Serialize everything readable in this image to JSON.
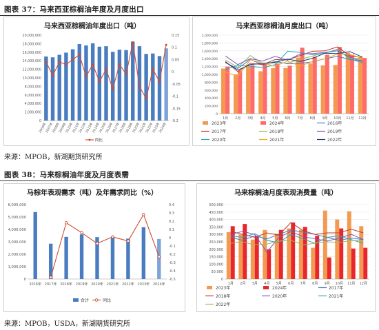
{
  "figures": [
    {
      "title": "图表 37：马来西亚棕榈油年度及月度出口",
      "source": "来源：MPOB，新湖期货研究所"
    },
    {
      "title": "图表 38：马来棕榈油年度及月度表需",
      "source": "来源：MPOB，USDA，新湖期货研究所"
    }
  ],
  "colors": {
    "bar_blue": "#4a7cc0",
    "line_red": "#d24a2e",
    "orange": "#f29a50",
    "red": "#e8262b",
    "salmon": "#ff6b6b"
  },
  "chart_data": [
    {
      "type": "bar",
      "title": "马来西亚棕榈油年度出口（吨）",
      "categories": [
        "2006年",
        "2007年",
        "2008年",
        "2009年",
        "2010年",
        "2011年",
        "2012年",
        "2013年",
        "2014年",
        "2015年",
        "2016年",
        "2017年",
        "2018年",
        "2019年",
        "2020年",
        "2021年",
        "2022年",
        "2023年",
        "2024年"
      ],
      "ylim": [
        0,
        20000000
      ],
      "yticks": [
        "0",
        "2,000,000",
        "4,000,000",
        "6,000,000",
        "8,000,000",
        "10,000,000",
        "12,000,000",
        "14,000,000",
        "16,000,000",
        "18,000,000",
        "20,000,000"
      ],
      "y2lim": [
        -0.2,
        0.15
      ],
      "y2ticks": [
        "-0.2",
        "-0.15",
        "-0.1",
        "-0.05",
        "0",
        "0.05",
        "0.1",
        "0.15"
      ],
      "series": [
        {
          "values": [
            15000000,
            14800000,
            15400000,
            15900000,
            16700000,
            17900000,
            17600000,
            18100000,
            17300000,
            17400000,
            16100000,
            16600000,
            16500000,
            18500000,
            17400000,
            15600000,
            15700000,
            15100000,
            16900000
          ]
        },
        {
          "name": "同比",
          "values": [
            0.04,
            -0.015,
            0.04,
            0.03,
            0.05,
            0.07,
            -0.02,
            0.03,
            -0.04,
            0.01,
            -0.07,
            0.03,
            -0.01,
            0.12,
            -0.06,
            -0.11,
            0.01,
            -0.04,
            0.11
          ]
        }
      ],
      "legend": [
        "同比"
      ]
    },
    {
      "type": "bar",
      "title": "马来西亚棕榈油月度出口（吨）",
      "categories": [
        "1月",
        "2月",
        "3月",
        "4月",
        "5月",
        "6月",
        "7月",
        "8月",
        "9月",
        "10月",
        "11月",
        "12月"
      ],
      "ylim": [
        0,
        2000000
      ],
      "yticks": [
        "0",
        "200,000",
        "400,000",
        "600,000",
        "800,000",
        "1,000,000",
        "1,200,000",
        "1,400,000",
        "1,600,000",
        "1,800,000",
        "2,000,000"
      ],
      "bars": [
        {
          "name": "2023年",
          "color": "#f29a50",
          "values": [
            1150000,
            1000000,
            1200000,
            1080000,
            1160000,
            1160000,
            1430000,
            1280000,
            1230000,
            1240000,
            1550000,
            1430000
          ]
        },
        {
          "name": "2024年",
          "color": "#ff6b6b",
          "values": [
            1200000,
            1100000,
            1230000,
            1270000,
            1270000,
            1220000,
            1680000,
            1450000,
            1500000,
            1700000,
            1500000,
            1420000
          ]
        }
      ],
      "lines": [
        {
          "name": "2016年",
          "color": "#4a7cc0",
          "values": [
            1300000,
            1150000,
            1380000,
            1240000,
            1330000,
            1270000,
            1280000,
            1320000,
            1400000,
            1460000,
            1380000,
            1350000
          ]
        },
        {
          "name": "2017年",
          "color": "#c0392b",
          "values": [
            1330000,
            1070000,
            1280000,
            1250000,
            1380000,
            1370000,
            1480000,
            1590000,
            1600000,
            1700000,
            1470000,
            1430000
          ]
        },
        {
          "name": "2018年",
          "color": "#9bbb59",
          "values": [
            1370000,
            1180000,
            1480000,
            1280000,
            1290000,
            1290000,
            1380000,
            1470000,
            1550000,
            1630000,
            1400000,
            1420000
          ]
        },
        {
          "name": "2019年",
          "color": "#7e57c2",
          "values": [
            1470000,
            1250000,
            1400000,
            1340000,
            1460000,
            1360000,
            1520000,
            1530000,
            1560000,
            1600000,
            1440000,
            1330000
          ]
        },
        {
          "name": "2020年",
          "color": "#2ca5b8",
          "values": [
            1130000,
            1230000,
            1210000,
            1170000,
            1250000,
            1590000,
            1560000,
            1500000,
            1540000,
            1640000,
            1390000,
            1300000
          ]
        },
        {
          "name": "2021年",
          "color": "#f5a623",
          "values": [
            1060000,
            950000,
            1370000,
            1290000,
            1210000,
            1340000,
            1210000,
            1330000,
            1400000,
            1520000,
            1510000,
            1410000
          ]
        },
        {
          "name": "2022年",
          "color": "#1f3b73",
          "values": [
            1310000,
            1110000,
            1250000,
            1280000,
            1310000,
            1390000,
            1330000,
            1410000,
            1540000,
            1530000,
            1580000,
            1440000
          ]
        }
      ],
      "legend": [
        "2023年",
        "2024年",
        "2016年",
        "2017年",
        "2018年",
        "2019年",
        "2020年",
        "2021年",
        "2022年"
      ]
    },
    {
      "type": "bar",
      "title": "马棕年表观需求（吨）及年需求同比（%）",
      "categories": [
        "2016年",
        "2017年",
        "2018年",
        "2019年",
        "2020年",
        "2021年",
        "2022年",
        "2023年",
        "2024年"
      ],
      "ylim": [
        0,
        6000000
      ],
      "yticks": [
        "0",
        "1,000,000",
        "2,000,000",
        "3,000,000",
        "4,000,000",
        "5,000,000",
        "6,000,000"
      ],
      "y2lim": [
        -0.5,
        0.4
      ],
      "y2ticks": [
        "-0.5",
        "-0.4",
        "-0.3",
        "-0.2",
        "-0.1",
        "0",
        "0.1",
        "0.2",
        "0.3",
        "0.4"
      ],
      "series": [
        {
          "name": "合计",
          "values": [
            5400000,
            2850000,
            3400000,
            3600000,
            3380000,
            3410000,
            3260000,
            4180000,
            3230000
          ]
        },
        {
          "name": "同比",
          "values": [
            null,
            -0.48,
            0.18,
            0.06,
            -0.07,
            0.01,
            -0.04,
            0.28,
            -0.23
          ]
        }
      ],
      "legend": [
        "合计",
        "同比"
      ]
    },
    {
      "type": "bar",
      "title": "马来棕榈油月度表观消费量（吨）",
      "categories": [
        "1月",
        "2月",
        "3月",
        "4月",
        "5月",
        "6月",
        "7月",
        "8月",
        "9月",
        "10月",
        "11月",
        "12月"
      ],
      "ylim": [
        0,
        500000
      ],
      "yticks": [
        "0",
        "50,000",
        "100,000",
        "150,000",
        "200,000",
        "250,000",
        "300,000",
        "350,000",
        "400,000",
        "450,000",
        "500,000"
      ],
      "bars": [
        {
          "name": "2023年",
          "color": "#f29a50",
          "values": [
            315000,
            300000,
            265000,
            330000,
            305000,
            340000,
            330000,
            210000,
            460000,
            400000,
            455000,
            355000
          ]
        },
        {
          "name": "2024年",
          "color": "#e8262b",
          "values": [
            355000,
            370000,
            290000,
            200000,
            330000,
            380000,
            350000,
            290000,
            145000,
            340000,
            205000,
            210000
          ]
        }
      ],
      "lines": [
        {
          "name": "2017年",
          "color": "#4a7cc0",
          "values": [
            280000,
            260000,
            290000,
            270000,
            300000,
            330000,
            315000,
            300000,
            280000,
            260000,
            275000,
            265000
          ]
        },
        {
          "name": "2018年",
          "color": "#c0392b",
          "values": [
            320000,
            300000,
            280000,
            310000,
            295000,
            380000,
            325000,
            300000,
            310000,
            310000,
            335000,
            310000
          ]
        },
        {
          "name": "2020年",
          "color": "#7e57c2",
          "values": [
            300000,
            320000,
            300000,
            180000,
            280000,
            320000,
            285000,
            270000,
            255000,
            275000,
            300000,
            265000
          ]
        },
        {
          "name": "2021年",
          "color": "#2ca5b8",
          "values": [
            290000,
            280000,
            305000,
            260000,
            245000,
            300000,
            270000,
            240000,
            280000,
            290000,
            265000,
            240000
          ]
        },
        {
          "name": "2022年",
          "color": "#9bbb59",
          "values": [
            240000,
            250000,
            230000,
            235000,
            255000,
            260000,
            230000,
            240000,
            250000,
            245000,
            260000,
            255000
          ]
        }
      ],
      "legend": [
        "2023年",
        "2024年",
        "2017年",
        "2018年",
        "2020年",
        "2021年",
        "2022年"
      ]
    }
  ]
}
